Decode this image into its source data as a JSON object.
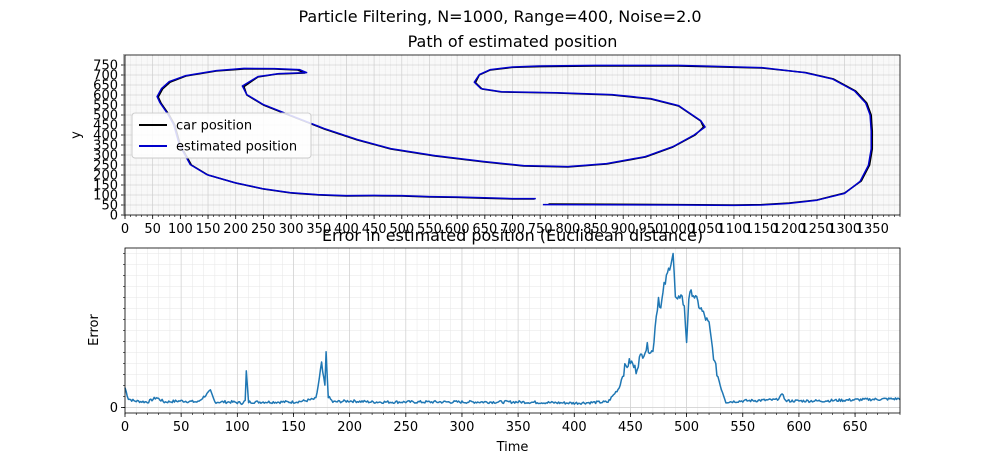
{
  "suptitle": "Particle Filtering, N=1000, Range=400, Noise=2.0",
  "chart_data": [
    {
      "type": "line",
      "title": "Path of estimated position",
      "xlabel": "",
      "ylabel": "y",
      "xlim": [
        0,
        1400
      ],
      "ylim": [
        0,
        800
      ],
      "xticks": [
        0,
        50,
        100,
        150,
        200,
        250,
        300,
        350,
        400,
        450,
        500,
        550,
        600,
        650,
        700,
        750,
        800,
        850,
        900,
        950,
        1000,
        1050,
        1100,
        1150,
        1200,
        1250,
        1300,
        1350
      ],
      "yticks": [
        0,
        50,
        100,
        150,
        200,
        250,
        300,
        350,
        400,
        450,
        500,
        550,
        600,
        650,
        700,
        750
      ],
      "grid": "major and minor",
      "legend_position": "center-left",
      "series": [
        {
          "name": "car position",
          "color": "#000000",
          "segments": [
            [
              [
                765,
                55
              ],
              [
                1000,
                52
              ],
              [
                1100,
                50
              ],
              [
                1150,
                52
              ],
              [
                1200,
                60
              ],
              [
                1250,
                75
              ],
              [
                1300,
                110
              ],
              [
                1330,
                170
              ],
              [
                1345,
                250
              ],
              [
                1350,
                330
              ],
              [
                1350,
                420
              ],
              [
                1348,
                500
              ],
              [
                1340,
                560
              ],
              [
                1320,
                620
              ],
              [
                1280,
                680
              ],
              [
                1230,
                712
              ],
              [
                1150,
                735
              ],
              [
                1000,
                745
              ],
              [
                850,
                745
              ],
              [
                750,
                742
              ],
              [
                700,
                738
              ],
              [
                660,
                725
              ],
              [
                640,
                700
              ],
              [
                633,
                662
              ],
              [
                645,
                630
              ],
              [
                680,
                615
              ],
              [
                780,
                610
              ],
              [
                880,
                600
              ],
              [
                950,
                580
              ],
              [
                1000,
                545
              ],
              [
                1040,
                470
              ],
              [
                1045,
                440
              ],
              [
                1030,
                400
              ],
              [
                990,
                340
              ],
              [
                940,
                290
              ],
              [
                870,
                255
              ],
              [
                800,
                240
              ],
              [
                720,
                245
              ],
              [
                650,
                265
              ],
              [
                560,
                295
              ],
              [
                480,
                330
              ],
              [
                420,
                375
              ],
              [
                360,
                430
              ],
              [
                300,
                495
              ],
              [
                250,
                550
              ],
              [
                220,
                600
              ],
              [
                215,
                642
              ],
              [
                240,
                690
              ],
              [
                275,
                705
              ],
              [
                325,
                710
              ],
              [
                312,
                725
              ],
              [
                270,
                730
              ],
              [
                215,
                730
              ],
              [
                165,
                720
              ],
              [
                110,
                695
              ],
              [
                82,
                665
              ],
              [
                68,
                630
              ],
              [
                60,
                590
              ],
              [
                65,
                560
              ],
              [
                80,
                500
              ],
              [
                90,
                450
              ],
              [
                100,
                350
              ],
              [
                120,
                250
              ],
              [
                150,
                200
              ],
              [
                200,
                160
              ],
              [
                250,
                130
              ],
              [
                300,
                110
              ],
              [
                350,
                100
              ],
              [
                400,
                95
              ],
              [
                450,
                96
              ],
              [
                500,
                95
              ],
              [
                550,
                90
              ],
              [
                600,
                88
              ],
              [
                650,
                84
              ],
              [
                700,
                80
              ],
              [
                740,
                80
              ]
            ]
          ]
        },
        {
          "name": "estimated position",
          "color": "#0000cc",
          "segments": [
            [
              [
                755,
                52
              ],
              [
                1000,
                50
              ],
              [
                1100,
                48
              ],
              [
                1150,
                50
              ],
              [
                1200,
                58
              ],
              [
                1250,
                74
              ],
              [
                1300,
                108
              ],
              [
                1328,
                168
              ],
              [
                1343,
                248
              ],
              [
                1348,
                330
              ],
              [
                1348,
                420
              ],
              [
                1346,
                500
              ],
              [
                1338,
                560
              ],
              [
                1318,
                620
              ],
              [
                1278,
                680
              ],
              [
                1228,
                712
              ],
              [
                1150,
                737
              ],
              [
                1000,
                748
              ],
              [
                850,
                748
              ],
              [
                750,
                745
              ],
              [
                700,
                740
              ],
              [
                660,
                727
              ],
              [
                640,
                702
              ],
              [
                631,
                664
              ],
              [
                643,
                632
              ],
              [
                680,
                616
              ],
              [
                780,
                611
              ],
              [
                880,
                602
              ],
              [
                950,
                582
              ],
              [
                1000,
                547
              ],
              [
                1040,
                472
              ],
              [
                1048,
                440
              ],
              [
                1028,
                400
              ],
              [
                990,
                342
              ],
              [
                940,
                292
              ],
              [
                870,
                257
              ],
              [
                800,
                242
              ],
              [
                720,
                247
              ],
              [
                650,
                267
              ],
              [
                560,
                297
              ],
              [
                480,
                332
              ],
              [
                420,
                377
              ],
              [
                360,
                432
              ],
              [
                300,
                497
              ],
              [
                250,
                552
              ],
              [
                220,
                602
              ],
              [
                212,
                645
              ],
              [
                240,
                692
              ],
              [
                278,
                707
              ],
              [
                328,
                712
              ],
              [
                315,
                727
              ],
              [
                270,
                732
              ],
              [
                215,
                733
              ],
              [
                165,
                722
              ],
              [
                110,
                697
              ],
              [
                80,
                667
              ],
              [
                66,
                632
              ],
              [
                58,
                592
              ],
              [
                63,
                562
              ],
              [
                78,
                502
              ],
              [
                88,
                452
              ],
              [
                98,
                352
              ],
              [
                118,
                252
              ],
              [
                148,
                202
              ],
              [
                198,
                162
              ],
              [
                248,
                132
              ],
              [
                298,
                112
              ],
              [
                348,
                102
              ],
              [
                400,
                97
              ],
              [
                450,
                98
              ],
              [
                500,
                97
              ],
              [
                550,
                92
              ],
              [
                600,
                90
              ],
              [
                650,
                86
              ],
              [
                700,
                82
              ],
              [
                742,
                82
              ]
            ]
          ]
        }
      ]
    },
    {
      "type": "line",
      "title": "Error in estimated position (Euclidean distance)",
      "xlabel": "Time",
      "ylabel": "Error",
      "xlim": [
        0,
        690
      ],
      "ylim": [
        -5,
        145
      ],
      "xticks": [
        0,
        50,
        100,
        150,
        200,
        250,
        300,
        350,
        400,
        450,
        500,
        550,
        600,
        650
      ],
      "yticks": [
        0
      ],
      "grid": "major and minor",
      "series": [
        {
          "name": "",
          "color": "#1f77b4",
          "values_sparse": [
            [
              0,
              18
            ],
            [
              3,
              8
            ],
            [
              8,
              6
            ],
            [
              20,
              5
            ],
            [
              28,
              9
            ],
            [
              35,
              5
            ],
            [
              50,
              6
            ],
            [
              65,
              5
            ],
            [
              76,
              15
            ],
            [
              80,
              5
            ],
            [
              95,
              5
            ],
            [
              104,
              4
            ],
            [
              107,
              6
            ],
            [
              108,
              32
            ],
            [
              110,
              5
            ],
            [
              130,
              5
            ],
            [
              150,
              5
            ],
            [
              160,
              6
            ],
            [
              170,
              8
            ],
            [
              175,
              38
            ],
            [
              178,
              20
            ],
            [
              179,
              48
            ],
            [
              181,
              10
            ],
            [
              185,
              5
            ],
            [
              200,
              6
            ],
            [
              220,
              5
            ],
            [
              250,
              5
            ],
            [
              300,
              5
            ],
            [
              350,
              5
            ],
            [
              400,
              4
            ],
            [
              430,
              5
            ],
            [
              440,
              18
            ],
            [
              445,
              36
            ],
            [
              450,
              42
            ],
            [
              455,
              34
            ],
            [
              458,
              44
            ],
            [
              465,
              55
            ],
            [
              470,
              50
            ],
            [
              472,
              75
            ],
            [
              475,
              100
            ],
            [
              477,
              90
            ],
            [
              480,
              110
            ],
            [
              484,
              125
            ],
            [
              488,
              140
            ],
            [
              490,
              100
            ],
            [
              492,
              95
            ],
            [
              495,
              105
            ],
            [
              498,
              90
            ],
            [
              500,
              60
            ],
            [
              502,
              100
            ],
            [
              505,
              105
            ],
            [
              510,
              95
            ],
            [
              515,
              85
            ],
            [
              520,
              75
            ],
            [
              525,
              40
            ],
            [
              530,
              20
            ],
            [
              535,
              5
            ],
            [
              550,
              6
            ],
            [
              580,
              7
            ],
            [
              586,
              12
            ],
            [
              588,
              6
            ],
            [
              620,
              6
            ],
            [
              650,
              7
            ],
            [
              690,
              8
            ]
          ]
        }
      ]
    }
  ]
}
